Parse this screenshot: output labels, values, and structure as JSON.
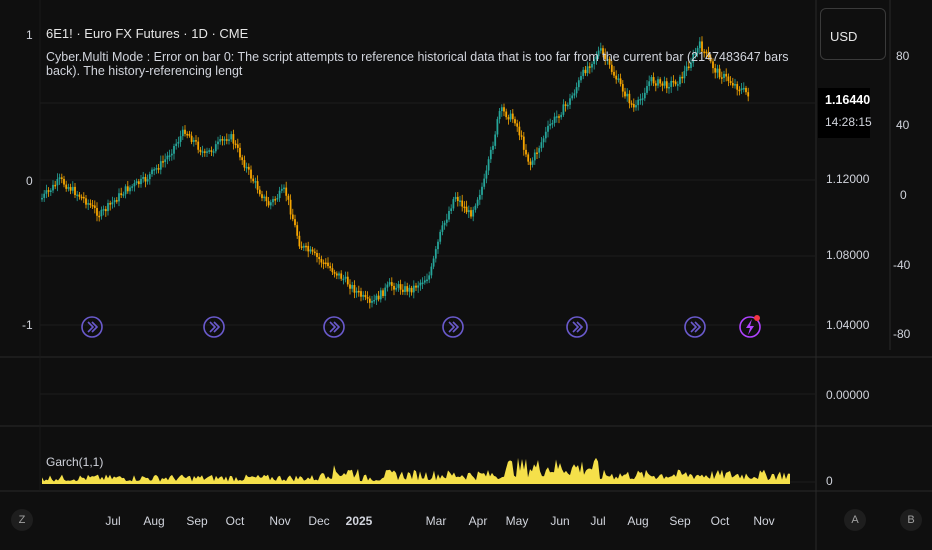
{
  "header": {
    "title": "6E1! · Euro FX Futures · 1D · CME",
    "error": "Cyber.Multi Mode : Error on bar 0: The script attempts to reference historical data that is too far from the current bar (2147483647 bars back). The history-referencing lengt"
  },
  "currency": "USD",
  "last_price": {
    "price": "1.16440",
    "countdown": "14:28:15"
  },
  "left_axis": [
    "1",
    "0",
    "-1"
  ],
  "price_axis": [
    "1.12000",
    "1.08000",
    "1.04000"
  ],
  "right_axis": [
    "80",
    "40",
    "0",
    "-40",
    "-80"
  ],
  "middle_pane": {
    "value": "0.00000"
  },
  "garch_pane": {
    "label": "Garch(1,1)",
    "value": "0"
  },
  "x_axis": [
    {
      "label": "Jul",
      "bold": false
    },
    {
      "label": "Aug",
      "bold": false
    },
    {
      "label": "Sep",
      "bold": false
    },
    {
      "label": "Oct",
      "bold": false
    },
    {
      "label": "Nov",
      "bold": false
    },
    {
      "label": "Dec",
      "bold": false
    },
    {
      "label": "2025",
      "bold": true
    },
    {
      "label": "Mar",
      "bold": false
    },
    {
      "label": "Apr",
      "bold": false
    },
    {
      "label": "May",
      "bold": false
    },
    {
      "label": "Jun",
      "bold": false
    },
    {
      "label": "Jul",
      "bold": false
    },
    {
      "label": "Aug",
      "bold": false
    },
    {
      "label": "Sep",
      "bold": false
    },
    {
      "label": "Oct",
      "bold": false
    },
    {
      "label": "Nov",
      "bold": false
    }
  ],
  "corner_buttons": {
    "zoom": "Z",
    "auto": "A",
    "scale": "B"
  },
  "colors": {
    "up": "#26a69a",
    "down": "#f7a600",
    "garch": "#f5e04a",
    "signal": "#6a5acd",
    "alert": "#b042ff",
    "alert_dot": "#f23645"
  },
  "signals": {
    "count": 6,
    "icon": "signal-icon",
    "alert_icon": "lightning-icon"
  }
}
